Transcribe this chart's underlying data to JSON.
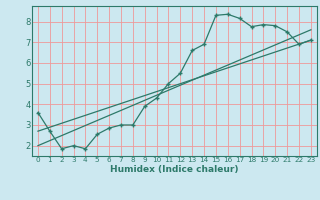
{
  "xlabel": "Humidex (Indice chaleur)",
  "background_color": "#cce8f0",
  "grid_color": "#ee9999",
  "line_color": "#2d7a6a",
  "xlim": [
    -0.5,
    23.5
  ],
  "ylim": [
    1.5,
    8.75
  ],
  "xticks": [
    0,
    1,
    2,
    3,
    4,
    5,
    6,
    7,
    8,
    9,
    10,
    11,
    12,
    13,
    14,
    15,
    16,
    17,
    18,
    19,
    20,
    21,
    22,
    23
  ],
  "yticks": [
    2,
    3,
    4,
    5,
    6,
    7,
    8
  ],
  "line1_x": [
    0,
    1,
    2,
    3,
    4,
    5,
    6,
    7,
    8,
    9,
    10,
    11,
    12,
    13,
    14,
    15,
    16,
    17,
    18,
    19,
    20,
    21,
    22,
    23
  ],
  "line1_y": [
    3.6,
    2.7,
    1.85,
    2.0,
    1.85,
    2.55,
    2.85,
    3.0,
    3.0,
    3.9,
    4.3,
    5.0,
    5.5,
    6.6,
    6.9,
    8.3,
    8.35,
    8.15,
    7.75,
    7.85,
    7.8,
    7.5,
    6.9,
    7.1
  ],
  "line2_x": [
    0,
    23
  ],
  "line2_y": [
    2.0,
    7.6
  ],
  "line3_x": [
    0,
    23
  ],
  "line3_y": [
    2.7,
    7.1
  ]
}
